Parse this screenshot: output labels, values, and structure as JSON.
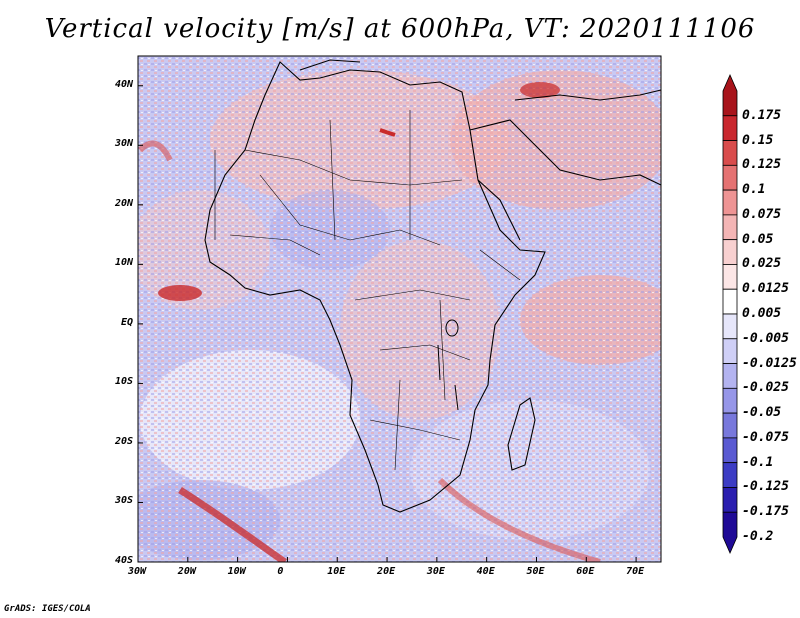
{
  "title": "Vertical velocity [m/s] at 600hPa, VT: 2020111106",
  "credit": "GrADS: IGES/COLA",
  "map": {
    "lon_range": [
      -30,
      75
    ],
    "lat_range": [
      -40,
      45
    ],
    "lat_labels": [
      "40N",
      "30N",
      "20N",
      "10N",
      "EQ",
      "10S",
      "20S",
      "30S",
      "40S"
    ],
    "lon_labels": [
      "30W",
      "20W",
      "10W",
      "0",
      "10E",
      "20E",
      "30E",
      "40E",
      "50E",
      "60E",
      "70E"
    ]
  },
  "colorbar": {
    "labels": [
      "0.175",
      "0.15",
      "0.125",
      "0.1",
      "0.075",
      "0.05",
      "0.025",
      "0.0125",
      "0.005",
      "-0.005",
      "-0.0125",
      "-0.025",
      "-0.05",
      "-0.075",
      "-0.1",
      "-0.125",
      "-0.175",
      "-0.2"
    ],
    "colors": [
      "#a8141b",
      "#c9272e",
      "#d94c4c",
      "#e57272",
      "#ee9494",
      "#f4b5b5",
      "#f8d0d0",
      "#fce6e6",
      "#ffffff",
      "#e6e6fa",
      "#cfcff6",
      "#b3b3f0",
      "#9696e8",
      "#7878dc",
      "#5a5ad2",
      "#3c3cc4",
      "#2a1eaf",
      "#1f0a96"
    ]
  }
}
